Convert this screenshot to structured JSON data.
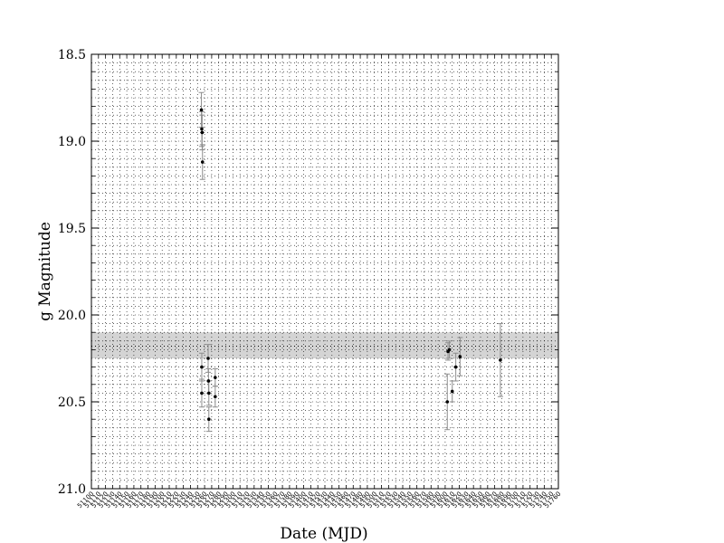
{
  "chart_data": {
    "type": "scatter",
    "xlabel": "Date (MJD)",
    "ylabel": "g Magnitude",
    "xlim": [
      51100,
      51760
    ],
    "ylim": [
      18.5,
      21.0
    ],
    "y_inverted": true,
    "grid": true,
    "y_ticks": [
      "18.5",
      "19.0",
      "19.5",
      "20.0",
      "20.5",
      "21.0"
    ],
    "x_ticks": [
      "51100",
      "51110",
      "51120",
      "51130",
      "51140",
      "51150",
      "51160",
      "51170",
      "51180",
      "51190",
      "51200",
      "51210",
      "51220",
      "51230",
      "51240",
      "51250",
      "51260",
      "51270",
      "51280",
      "51290",
      "51300",
      "51310",
      "51320",
      "51330",
      "51340",
      "51350",
      "51360",
      "51370",
      "51380",
      "51390",
      "51400",
      "51410",
      "51420",
      "51430",
      "51440",
      "51450",
      "51460",
      "51470",
      "51480",
      "51490",
      "51500",
      "51510",
      "51520",
      "51530",
      "51540",
      "51550",
      "51560",
      "51570",
      "51580",
      "51590",
      "51600",
      "51610",
      "51620",
      "51630",
      "51640",
      "51650",
      "51660",
      "51670",
      "51680",
      "51690",
      "51700",
      "51710",
      "51720",
      "51730",
      "51740",
      "51750",
      "51760"
    ],
    "mean_line": 20.18,
    "band": [
      20.1,
      20.25
    ],
    "points": [
      {
        "x": 51255.5,
        "y": 18.82,
        "err": 0.1
      },
      {
        "x": 51256.0,
        "y": 18.93,
        "err": 0.1
      },
      {
        "x": 51256.5,
        "y": 18.95,
        "err": 0.1
      },
      {
        "x": 51257.0,
        "y": 19.12,
        "err": 0.1
      },
      {
        "x": 51256.0,
        "y": 20.3,
        "err": 0.08
      },
      {
        "x": 51256.0,
        "y": 20.45,
        "err": 0.08
      },
      {
        "x": 51265.0,
        "y": 20.25,
        "err": 0.08
      },
      {
        "x": 51265.5,
        "y": 20.38,
        "err": 0.07
      },
      {
        "x": 51266.0,
        "y": 20.45,
        "err": 0.07
      },
      {
        "x": 51266.0,
        "y": 20.6,
        "err": 0.07
      },
      {
        "x": 51275.0,
        "y": 20.36,
        "err": 0.05
      },
      {
        "x": 51275.0,
        "y": 20.47,
        "err": 0.06
      },
      {
        "x": 51603.0,
        "y": 20.5,
        "err": 0.16
      },
      {
        "x": 51604.0,
        "y": 20.21,
        "err": 0.05
      },
      {
        "x": 51606.0,
        "y": 20.2,
        "err": 0.05
      },
      {
        "x": 51610.0,
        "y": 20.44,
        "err": 0.06
      },
      {
        "x": 51615.0,
        "y": 20.3,
        "err": 0.08
      },
      {
        "x": 51621.0,
        "y": 20.24,
        "err": 0.11
      },
      {
        "x": 51678.0,
        "y": 20.26,
        "err": 0.21
      }
    ],
    "colors": {
      "points": "#000000",
      "errorbars": "#8c8c8c",
      "band": "#d4d4d4",
      "grid": "#000000"
    }
  }
}
